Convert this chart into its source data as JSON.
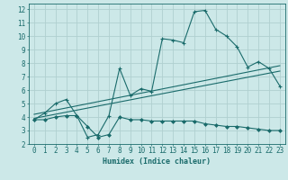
{
  "bg_color": "#cce8e8",
  "grid_color": "#b0d0d0",
  "line_color": "#1a6b6b",
  "xlabel": "Humidex (Indice chaleur)",
  "xlim": [
    -0.5,
    23.5
  ],
  "ylim": [
    2,
    12.4
  ],
  "xticks": [
    0,
    1,
    2,
    3,
    4,
    5,
    6,
    7,
    8,
    9,
    10,
    11,
    12,
    13,
    14,
    15,
    16,
    17,
    18,
    19,
    20,
    21,
    22,
    23
  ],
  "yticks": [
    2,
    3,
    4,
    5,
    6,
    7,
    8,
    9,
    10,
    11,
    12
  ],
  "curve_main_x": [
    0,
    1,
    2,
    3,
    4,
    5,
    6,
    7,
    8,
    9,
    10,
    11,
    12,
    13,
    14,
    15,
    16,
    17,
    18,
    19,
    20,
    21,
    22,
    23
  ],
  "curve_main_y": [
    3.8,
    4.3,
    5.0,
    5.3,
    4.1,
    2.5,
    2.7,
    4.1,
    7.6,
    5.6,
    6.1,
    5.9,
    9.8,
    9.7,
    9.5,
    11.8,
    11.9,
    10.5,
    10.0,
    9.2,
    7.7,
    8.1,
    7.6,
    6.3
  ],
  "curve_low_x": [
    0,
    1,
    2,
    3,
    4,
    5,
    6,
    7,
    8,
    9,
    10,
    11,
    12,
    13,
    14,
    15,
    16,
    17,
    18,
    19,
    20,
    21,
    22,
    23
  ],
  "curve_low_y": [
    3.8,
    3.8,
    4.0,
    4.1,
    4.1,
    3.3,
    2.5,
    2.7,
    4.0,
    3.8,
    3.8,
    3.7,
    3.7,
    3.7,
    3.7,
    3.7,
    3.5,
    3.4,
    3.3,
    3.3,
    3.2,
    3.1,
    3.0,
    3.0
  ],
  "trend1_x": [
    0,
    23
  ],
  "trend1_y": [
    4.2,
    7.8
  ],
  "trend2_x": [
    0,
    23
  ],
  "trend2_y": [
    3.9,
    7.4
  ]
}
